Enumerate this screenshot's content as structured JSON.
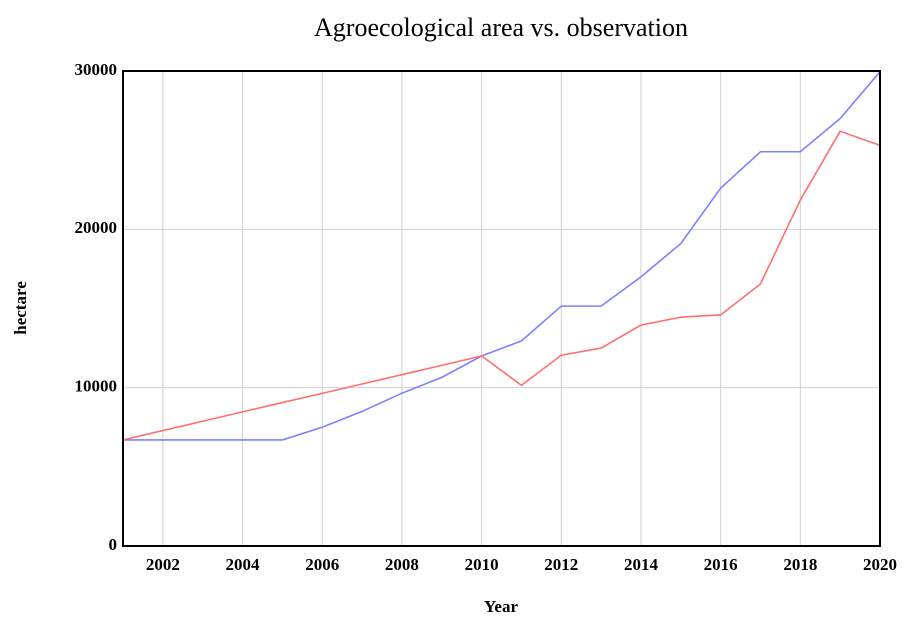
{
  "chart_data": {
    "type": "line",
    "title": "Agroecological area vs. observation",
    "xlabel": "Year",
    "ylabel": "hectare",
    "x": [
      2001,
      2002,
      2003,
      2004,
      2005,
      2006,
      2007,
      2008,
      2009,
      2010,
      2011,
      2012,
      2013,
      2014,
      2015,
      2016,
      2017,
      2018,
      2019,
      2020
    ],
    "series": [
      {
        "color": "#8080ff",
        "values": [
          6700,
          6700,
          6700,
          6700,
          6700,
          7500,
          8500,
          9650,
          10650,
          12000,
          12950,
          15150,
          15150,
          17000,
          19100,
          22600,
          24900,
          24900,
          27000,
          29950
        ]
      },
      {
        "color": "#ff7070",
        "values": [
          6700,
          7290,
          7880,
          8470,
          9060,
          9640,
          10230,
          10820,
          11410,
          12000,
          10150,
          12050,
          12500,
          13950,
          14450,
          14600,
          16550,
          21850,
          26200,
          25300
        ]
      }
    ],
    "xlim": [
      2001,
      2020
    ],
    "xticks": [
      2002,
      2004,
      2006,
      2008,
      2010,
      2012,
      2014,
      2016,
      2018,
      2020
    ],
    "ylim": [
      0,
      30000
    ],
    "yticks": [
      0,
      10000,
      20000,
      30000
    ],
    "grid": true
  }
}
